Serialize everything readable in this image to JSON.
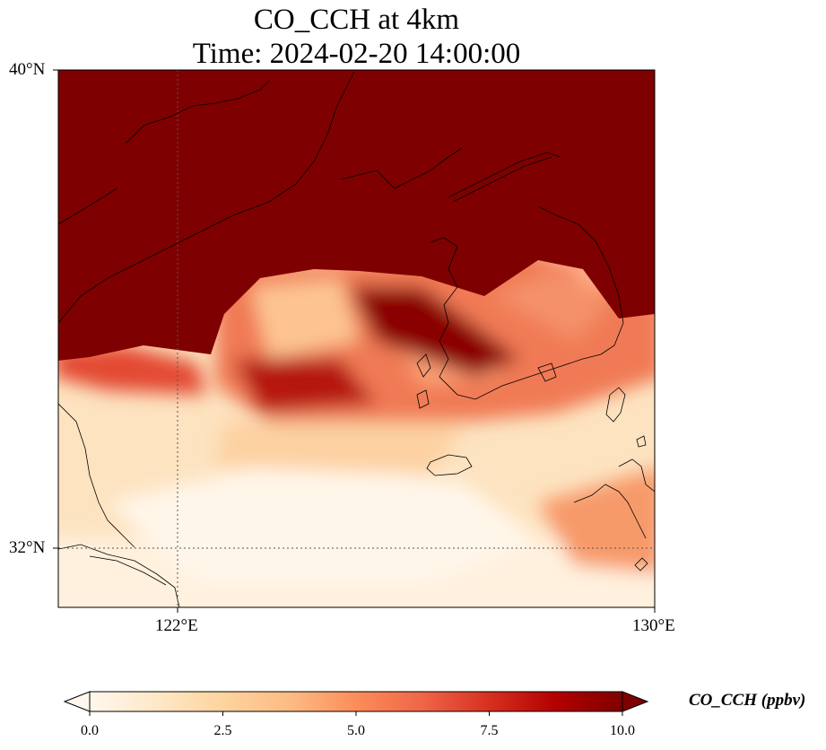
{
  "title": {
    "line1": "CO_CCH at 4km",
    "line2": "Time: 2024-02-20 14:00:00"
  },
  "map": {
    "lon_range": [
      120,
      130
    ],
    "lat_range": [
      31,
      40
    ],
    "lat_ticks": [
      {
        "value": 40,
        "label": "40°N"
      },
      {
        "value": 32,
        "label": "32°N"
      }
    ],
    "lon_ticks": [
      {
        "value": 122,
        "label": "122°E"
      },
      {
        "value": 130,
        "label": "130°E"
      }
    ],
    "gridlines": "dotted",
    "colormap": "OrRd"
  },
  "colorbar": {
    "label": "CO_CCH (ppbv)",
    "min": 0.0,
    "max": 10.0,
    "extend": "both",
    "orientation": "horizontal",
    "ticks": [
      "0.0",
      "2.5",
      "5.0",
      "7.5",
      "10.0"
    ],
    "colors": [
      "#fff7ec",
      "#fee8c8",
      "#fdd49e",
      "#fdbb84",
      "#fc8d59",
      "#ef6548",
      "#d7301f",
      "#b30000",
      "#7f0000"
    ]
  }
}
